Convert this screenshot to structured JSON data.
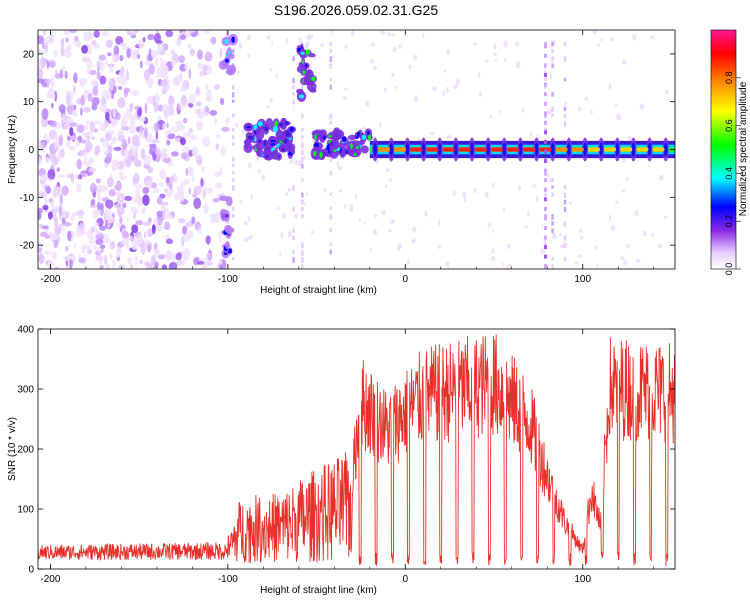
{
  "title": "S196.2026.059.02.31.G25",
  "chart_data": [
    {
      "type": "heatmap",
      "xlabel": "Height of straight line (km)",
      "ylabel": "Frequency (Hz)",
      "xlim": [
        -207,
        152
      ],
      "ylim": [
        -25,
        25
      ],
      "xticks": [
        -200,
        -100,
        0,
        100
      ],
      "yticks": [
        -20,
        -10,
        0,
        10,
        20
      ],
      "colorbar": {
        "label": "Normalized spectral amplitude",
        "ticks": [
          0.0,
          0.2,
          0.4,
          0.6,
          0.8
        ],
        "range": [
          0,
          1
        ],
        "colormap": [
          "#ffffff",
          "#e6ccff",
          "#8a2be2",
          "#0000ff",
          "#00ffff",
          "#00ff00",
          "#ffff00",
          "#ff8c00",
          "#ff0000",
          "#ff1493"
        ]
      },
      "regions": [
        {
          "name": "noise",
          "x": [
            -207,
            -100
          ],
          "freq": [
            -25,
            25
          ],
          "amplitude": 0.15
        },
        {
          "name": "blob",
          "x": [
            -103,
            -90
          ],
          "freq": [
            -20,
            -10
          ],
          "amplitude": 0.3
        },
        {
          "name": "blob",
          "x": [
            -103,
            -95
          ],
          "freq": [
            18,
            23
          ],
          "amplitude": 0.35
        },
        {
          "name": "blob",
          "x": [
            -90,
            -63
          ],
          "freq": [
            -1,
            6
          ],
          "amplitude": 0.35
        },
        {
          "name": "blob",
          "x": [
            -60,
            -50
          ],
          "freq": [
            12,
            20
          ],
          "amplitude": 0.35
        },
        {
          "name": "blob",
          "x": [
            -50,
            -20
          ],
          "freq": [
            -1,
            4
          ],
          "amplitude": 0.4
        },
        {
          "name": "tone",
          "x": [
            -20,
            152
          ],
          "freq": [
            0,
            0
          ],
          "amplitude": 0.9
        }
      ]
    },
    {
      "type": "line",
      "xlabel": "Height of straight line (km)",
      "ylabel": "SNR (10 * v/v)",
      "xlim": [
        -207,
        152
      ],
      "ylim": [
        0,
        400
      ],
      "xticks": [
        -200,
        -100,
        0,
        100
      ],
      "yticks": [
        0,
        100,
        200,
        300,
        400
      ],
      "color": "#e8302a",
      "envelope": [
        {
          "x": -207,
          "y": 40
        },
        {
          "x": -100,
          "y": 45
        },
        {
          "x": -93,
          "y": 110
        },
        {
          "x": -70,
          "y": 120
        },
        {
          "x": -50,
          "y": 160
        },
        {
          "x": -30,
          "y": 190
        },
        {
          "x": -25,
          "y": 360
        },
        {
          "x": -10,
          "y": 300
        },
        {
          "x": 10,
          "y": 370
        },
        {
          "x": 50,
          "y": 400
        },
        {
          "x": 70,
          "y": 320
        },
        {
          "x": 80,
          "y": 200
        },
        {
          "x": 90,
          "y": 100
        },
        {
          "x": 100,
          "y": 40
        },
        {
          "x": 105,
          "y": 170
        },
        {
          "x": 110,
          "y": 90
        },
        {
          "x": 115,
          "y": 390
        },
        {
          "x": 152,
          "y": 380
        }
      ]
    }
  ]
}
